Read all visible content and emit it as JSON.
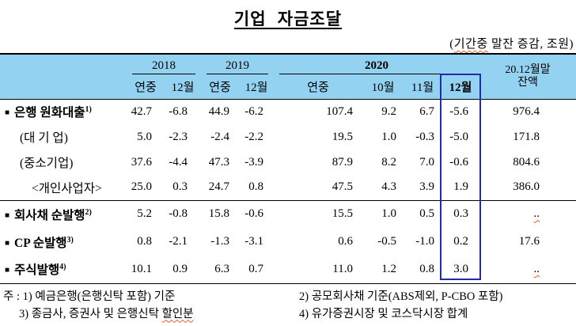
{
  "page": {
    "title": "기업 자금조달",
    "unit_note": {
      "pre": "(",
      "highlight": "기간중",
      "post": " 말잔 증감, 조원)"
    }
  },
  "glyphs": {
    "bullet": "■"
  },
  "colors": {
    "header_bg": "#94d2f2",
    "box_border": "#1f2ba8",
    "squiggle": "#e0622f"
  },
  "table": {
    "groups": [
      {
        "year": "2018",
        "subs": [
          "연중",
          "12월"
        ]
      },
      {
        "year": "2019",
        "subs": [
          "연중",
          "12월"
        ]
      },
      {
        "year": "2020",
        "subs": [
          "연중",
          "10월",
          "11월",
          "12월"
        ]
      }
    ],
    "balance_header_line1": "20.12월말",
    "balance_header_line2": "잔액",
    "rows": [
      {
        "label": "은행 원화대출",
        "sup": "1)",
        "values": [
          "42.7",
          "-6.8",
          "44.9",
          "-6.2",
          "107.4",
          "9.2",
          "6.7",
          "-5.6",
          "976.4"
        ]
      },
      {
        "label": "(대 기 업)",
        "sup": "",
        "values": [
          "5.0",
          "-2.3",
          "-2.4",
          "-2.2",
          "19.5",
          "1.0",
          "-0.3",
          "-5.0",
          "171.8"
        ]
      },
      {
        "label": "(중소기업)",
        "sup": "",
        "values": [
          "37.6",
          "-4.4",
          "47.3",
          "-3.9",
          "87.9",
          "8.2",
          "7.0",
          "-0.6",
          "804.6"
        ]
      },
      {
        "label": "<개인사업자>",
        "sup": "",
        "values": [
          "25.0",
          "0.3",
          "24.7",
          "0.8",
          "47.5",
          "4.3",
          "3.9",
          "1.9",
          "386.0"
        ]
      },
      {
        "label": "회사채 순발행",
        "sup": "2)",
        "values": [
          "5.2",
          "-0.8",
          "15.8",
          "-0.6",
          "15.5",
          "1.0",
          "0.5",
          "0.3",
          ".."
        ]
      },
      {
        "label": "CP 순발행",
        "sup": "3)",
        "values": [
          "0.8",
          "-2.1",
          "-1.3",
          "-3.1",
          "0.6",
          "-0.5",
          "-1.0",
          "0.2",
          "17.6"
        ]
      },
      {
        "label": "주식발행",
        "sup": "4)",
        "values": [
          "10.1",
          "0.9",
          "6.3",
          "0.7",
          "11.0",
          "1.2",
          "0.8",
          "3.0",
          ".."
        ]
      }
    ]
  },
  "footnotes": {
    "line1_left": "주 : 1) 예금은행(은행신탁 포함) 기준",
    "line1_right": "2) 공모회사채 기준(ABS제외, P-CBO 포함)",
    "line2_left_pre": "3) 종금사, 증권사 및 은행신탁 ",
    "line2_left_highlight": "할인분",
    "line2_right": "4) 유가증권시장 및 코스닥시장 합계"
  }
}
